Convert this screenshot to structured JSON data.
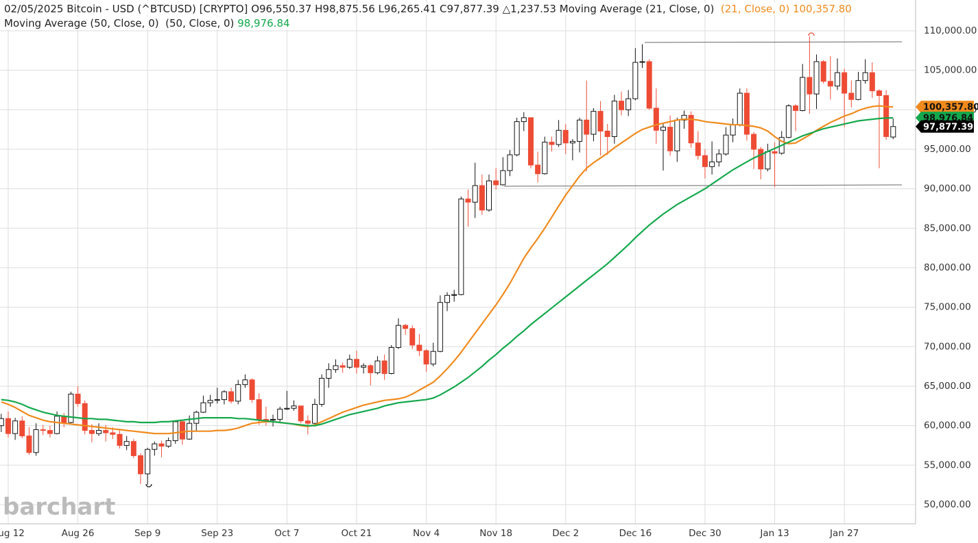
{
  "header": {
    "date": "02/05/2025",
    "symbol": "Bitcoin - USD (^BTCUSD) [CRYPTO]",
    "open": "O96,550.37",
    "high": "H98,875.56",
    "low": "L96,265.41",
    "close": "C97,877.39",
    "change": "△1,237.53"
  },
  "chart_data": {
    "type": "candlestick",
    "categories": [
      null,
      "Aug 12",
      null,
      null,
      null,
      null,
      null,
      null,
      null,
      null,
      null,
      "Aug 26",
      null,
      null,
      null,
      null,
      null,
      null,
      null,
      null,
      null,
      "Sep 9",
      null,
      null,
      null,
      null,
      null,
      null,
      null,
      null,
      null,
      "Sep 23",
      null,
      null,
      null,
      null,
      null,
      null,
      null,
      null,
      null,
      "Oct 7",
      null,
      null,
      null,
      null,
      null,
      null,
      null,
      null,
      null,
      "Oct 21",
      null,
      null,
      null,
      null,
      null,
      null,
      null,
      null,
      null,
      "Nov 4",
      null,
      null,
      null,
      null,
      null,
      null,
      null,
      null,
      null,
      "Nov 18",
      null,
      null,
      null,
      null,
      null,
      null,
      null,
      null,
      null,
      "Dec 2",
      null,
      null,
      null,
      null,
      null,
      null,
      null,
      null,
      null,
      "Dec 16",
      null,
      null,
      null,
      null,
      null,
      null,
      null,
      null,
      null,
      "Dec 30",
      null,
      null,
      null,
      null,
      null,
      null,
      null,
      null,
      null,
      "Jan 13",
      null,
      null,
      null,
      null,
      null,
      null,
      null,
      null,
      null,
      "Jan 27",
      null,
      null,
      null,
      null,
      null,
      null,
      null
    ],
    "open": [
      60000,
      60900,
      59000,
      60600,
      58700,
      56600,
      59500,
      59400,
      59000,
      61200,
      60400,
      64000,
      62800,
      59400,
      59000,
      59400,
      59100,
      58900,
      57500,
      58000,
      56200,
      53900,
      57000,
      57700,
      57400,
      58100,
      60500,
      58300,
      60300,
      61700,
      62900,
      63200,
      63300,
      64300,
      63100,
      65200,
      65800,
      63300,
      60800,
      60700,
      60800,
      62100,
      62200,
      62500,
      60600,
      60300,
      62700,
      66000,
      67100,
      67600,
      67400,
      68400,
      67400,
      67600,
      66700,
      68200,
      66600,
      69900,
      72700,
      72300,
      70200,
      69500,
      67800,
      69400,
      75600,
      76500,
      76600,
      88700,
      88300,
      90400,
      87300,
      91000,
      90500,
      92300,
      94300,
      98500,
      99000,
      93000,
      91900,
      95900,
      95600,
      97400,
      95800,
      96000,
      98700,
      96900,
      99800,
      97300,
      96600,
      101100,
      100000,
      101400,
      106000,
      106100,
      100200,
      97400,
      97800,
      94800,
      98700,
      99300,
      95800,
      94200,
      92800,
      93400,
      94400,
      96800,
      98100,
      102100,
      96900,
      95000,
      92500,
      94700,
      94500,
      96500,
      100500,
      99900,
      104100,
      102000,
      106100,
      103600,
      103000,
      104700,
      102100,
      101300,
      103700,
      104700,
      102400,
      101800,
      96550.37
    ],
    "high": [
      61500,
      61800,
      61000,
      61200,
      59800,
      60300,
      60100,
      60000,
      61800,
      61600,
      64300,
      65000,
      63200,
      60200,
      60300,
      60100,
      59800,
      59400,
      58700,
      58300,
      56500,
      57200,
      58000,
      58100,
      58500,
      60700,
      60600,
      61300,
      61900,
      63800,
      63900,
      64800,
      64500,
      64800,
      65800,
      66500,
      66000,
      64100,
      62400,
      61400,
      62400,
      64400,
      63200,
      62500,
      61300,
      63400,
      66500,
      67900,
      68400,
      68000,
      69000,
      69500,
      67900,
      67800,
      68800,
      69000,
      70200,
      73600,
      72900,
      72700,
      71600,
      69700,
      70500,
      76500,
      76900,
      77200,
      89000,
      89900,
      93300,
      91800,
      91800,
      92600,
      94000,
      94900,
      99000,
      99700,
      99000,
      94700,
      96600,
      96600,
      98700,
      98200,
      96300,
      99000,
      103700,
      100200,
      101100,
      98200,
      101900,
      102300,
      102500,
      107800,
      108300,
      106400,
      102700,
      98200,
      99300,
      99000,
      99900,
      99800,
      97300,
      95000,
      96000,
      95000,
      97800,
      98900,
      102700,
      102700,
      97200,
      95300,
      95700,
      95900,
      97300,
      100700,
      100700,
      105800,
      109300,
      107000,
      106300,
      106800,
      106500,
      105200,
      103700,
      104800,
      106400,
      106000,
      102600,
      102500,
      98875.56
    ],
    "low": [
      59200,
      58500,
      58200,
      58400,
      56300,
      56200,
      58800,
      58500,
      58900,
      59800,
      60300,
      62400,
      58900,
      57900,
      58700,
      58000,
      58300,
      57100,
      56900,
      55900,
      52600,
      52500,
      56200,
      56000,
      57200,
      57700,
      57600,
      58200,
      59300,
      61600,
      62400,
      62800,
      62700,
      62800,
      62700,
      64800,
      62900,
      60100,
      60000,
      59900,
      60500,
      62000,
      61900,
      60300,
      58900,
      60200,
      62400,
      64800,
      66700,
      66700,
      67200,
      66600,
      66600,
      65100,
      66500,
      65800,
      66500,
      69700,
      71500,
      69700,
      68800,
      66800,
      67500,
      69300,
      74500,
      75700,
      76500,
      85200,
      86300,
      86700,
      87100,
      89900,
      90400,
      91600,
      94100,
      97300,
      92600,
      90800,
      91800,
      94700,
      95300,
      94400,
      93600,
      94600,
      92200,
      96000,
      94200,
      94300,
      95700,
      99300,
      99200,
      101200,
      105300,
      100000,
      95700,
      92300,
      94200,
      93400,
      97600,
      95200,
      93700,
      91300,
      91800,
      92800,
      94200,
      95900,
      97900,
      96100,
      92500,
      91200,
      92200,
      90200,
      94300,
      96400,
      97300,
      99800,
      99500,
      100100,
      103300,
      101300,
      102500,
      97800,
      100300,
      101200,
      103300,
      101500,
      92600,
      96200,
      96265.41
    ],
    "close": [
      60900,
      59000,
      60600,
      58700,
      56600,
      59500,
      59400,
      59000,
      61200,
      60400,
      64000,
      62800,
      59400,
      59000,
      59400,
      59100,
      58900,
      57500,
      58000,
      56200,
      53900,
      57000,
      57700,
      57400,
      58100,
      60500,
      58300,
      60300,
      61700,
      62900,
      63200,
      63300,
      64300,
      63100,
      65200,
      65800,
      63300,
      60800,
      60700,
      60800,
      62100,
      62200,
      62500,
      60600,
      60300,
      62700,
      66000,
      67100,
      67600,
      67400,
      68400,
      67400,
      67600,
      66700,
      68200,
      66600,
      69900,
      72700,
      72300,
      70200,
      69500,
      67800,
      69400,
      75600,
      76500,
      76600,
      88700,
      88300,
      90400,
      87300,
      91000,
      90500,
      92300,
      94300,
      98500,
      99000,
      93000,
      91900,
      95900,
      95600,
      97400,
      95800,
      96000,
      98700,
      96900,
      99800,
      97300,
      96600,
      101100,
      100000,
      101400,
      106000,
      106100,
      100200,
      97400,
      97800,
      94800,
      98700,
      99300,
      95800,
      94200,
      92800,
      93400,
      94400,
      96800,
      98100,
      102100,
      96900,
      95000,
      92500,
      94700,
      94500,
      96500,
      100500,
      99900,
      104100,
      102000,
      106100,
      103600,
      103000,
      104700,
      102100,
      101300,
      103700,
      104700,
      102400,
      101800,
      96600,
      97877.39
    ],
    "up_color": "#ffffff",
    "down_color": "#ee4b35",
    "outline_color": "#111111",
    "series": [
      {
        "name": "Moving Average (21, Close, 0)",
        "params": "(21, Close, 0)",
        "color": "#f08a1c",
        "last_label": "100,357.80",
        "values": [
          63000,
          62700,
          62300,
          61800,
          61300,
          61000,
          60700,
          60500,
          60400,
          60300,
          60200,
          60100,
          60000,
          59900,
          59800,
          59700,
          59600,
          59500,
          59400,
          59300,
          59200,
          59100,
          59000,
          59000,
          59000,
          59100,
          59200,
          59300,
          59300,
          59300,
          59300,
          59400,
          59400,
          59500,
          59700,
          60000,
          60300,
          60400,
          60500,
          60500,
          60400,
          60300,
          60200,
          60000,
          59900,
          60100,
          60500,
          60900,
          61300,
          61700,
          62000,
          62300,
          62600,
          62800,
          63000,
          63200,
          63300,
          63400,
          63600,
          64000,
          64500,
          65000,
          65500,
          66300,
          67200,
          68200,
          69300,
          70500,
          71700,
          72900,
          74100,
          75300,
          76600,
          78000,
          79600,
          81200,
          82500,
          83700,
          85000,
          86400,
          87800,
          89200,
          90400,
          91600,
          92600,
          93300,
          93900,
          94500,
          95200,
          95800,
          96400,
          97000,
          97500,
          97800,
          98100,
          98300,
          98500,
          98700,
          98800,
          98800,
          98700,
          98500,
          98400,
          98300,
          98200,
          98100,
          98100,
          98000,
          97900,
          97700,
          97300,
          96600,
          96000,
          95700,
          95800,
          96300,
          96800,
          97400,
          97900,
          98400,
          98800,
          99200,
          99500,
          99900,
          100200,
          100400,
          100500,
          100400,
          100357.8
        ]
      },
      {
        "name": "Moving Average (50, Close, 0)",
        "params": "(50, Close, 0)",
        "color": "#13a84c",
        "last_label": "98,976.84",
        "values": [
          63300,
          63200,
          63000,
          62700,
          62300,
          62000,
          61700,
          61500,
          61300,
          61200,
          61100,
          61000,
          60900,
          60900,
          60800,
          60800,
          60700,
          60600,
          60500,
          60500,
          60400,
          60400,
          60400,
          60500,
          60500,
          60600,
          60700,
          60800,
          60900,
          61000,
          61000,
          61000,
          61000,
          61000,
          60900,
          60900,
          60800,
          60700,
          60600,
          60500,
          60400,
          60300,
          60200,
          60100,
          60000,
          60000,
          60200,
          60500,
          60800,
          61100,
          61400,
          61600,
          61800,
          62000,
          62200,
          62500,
          62700,
          62900,
          63000,
          63100,
          63200,
          63300,
          63500,
          63900,
          64400,
          64900,
          65500,
          66100,
          66800,
          67500,
          68300,
          69000,
          69800,
          70500,
          71300,
          72000,
          72800,
          73500,
          74200,
          74900,
          75600,
          76300,
          77000,
          77700,
          78400,
          79100,
          79800,
          80500,
          81300,
          82100,
          82900,
          83800,
          84600,
          85400,
          86100,
          86800,
          87400,
          88000,
          88500,
          89000,
          89500,
          90000,
          90600,
          91200,
          91800,
          92400,
          92900,
          93400,
          93900,
          94300,
          94700,
          95100,
          95500,
          95900,
          96300,
          96700,
          97000,
          97300,
          97600,
          97800,
          98000,
          98200,
          98400,
          98600,
          98700,
          98800,
          98900,
          98950,
          98976.84
        ]
      }
    ],
    "close_label": "97,877.39",
    "ylim": [
      47570,
      113900
    ],
    "yticks": [
      {
        "value": 50000,
        "label": "50,000.00"
      },
      {
        "value": 55000,
        "label": "55,000.00"
      },
      {
        "value": 60000,
        "label": "60,000.00"
      },
      {
        "value": 65000,
        "label": "65,000.00"
      },
      {
        "value": 70000,
        "label": "70,000.00"
      },
      {
        "value": 75000,
        "label": "75,000.00"
      },
      {
        "value": 80000,
        "label": "80,000.00"
      },
      {
        "value": 85000,
        "label": "85,000.00"
      },
      {
        "value": 90000,
        "label": "90,000.00"
      },
      {
        "value": 95000,
        "label": "95,000.00"
      },
      {
        "value": 100000,
        "label": "100,000.00"
      },
      {
        "value": 105000,
        "label": "105,000.00"
      },
      {
        "value": 110000,
        "label": "110,000.00"
      }
    ],
    "grid": true,
    "watermark": "barchart"
  }
}
